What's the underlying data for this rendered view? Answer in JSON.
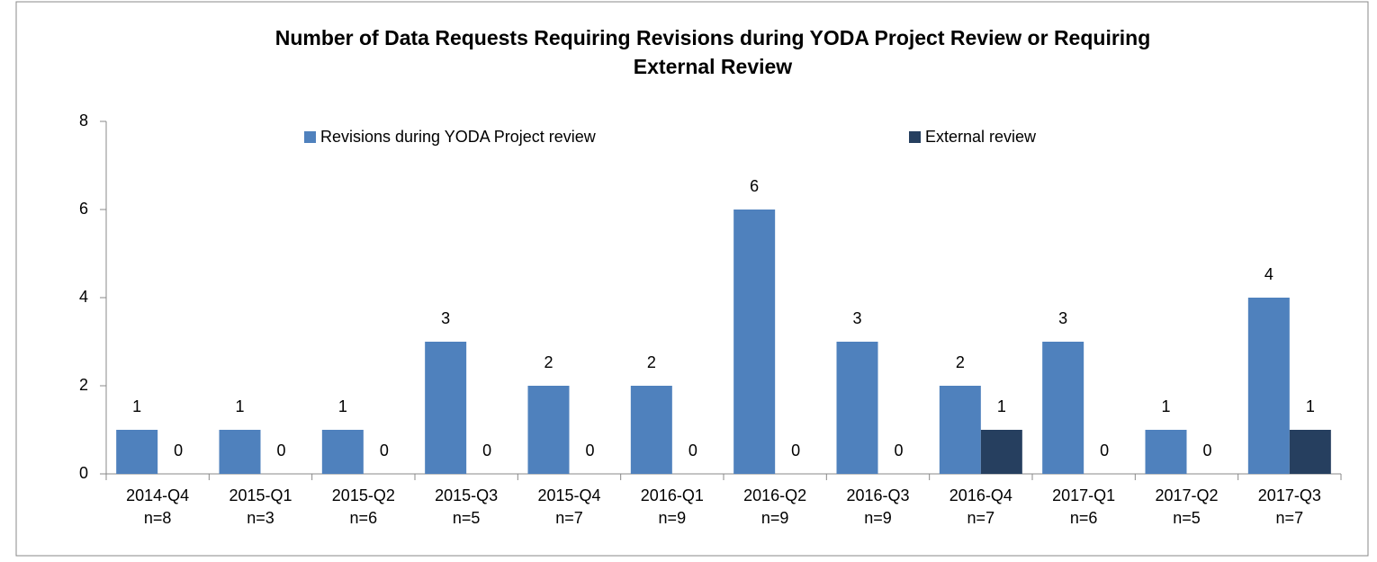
{
  "chart_data": {
    "type": "bar",
    "title_lines": [
      "Number of Data Requests Requiring Revisions during YODA Project Review or Requiring",
      "External Review"
    ],
    "categories": [
      "2014-Q4",
      "2015-Q1",
      "2015-Q2",
      "2015-Q3",
      "2015-Q4",
      "2016-Q1",
      "2016-Q2",
      "2016-Q3",
      "2016-Q4",
      "2017-Q1",
      "2017-Q2",
      "2017-Q3"
    ],
    "category_counts": [
      "n=8",
      "n=3",
      "n=6",
      "n=5",
      "n=7",
      "n=9",
      "n=9",
      "n=9",
      "n=7",
      "n=6",
      "n=5",
      "n=7"
    ],
    "series": [
      {
        "name": "Revisions during YODA Project review",
        "color": "#4f81bd",
        "values": [
          1,
          1,
          1,
          3,
          2,
          2,
          6,
          3,
          2,
          3,
          1,
          4
        ]
      },
      {
        "name": "External review",
        "color": "#263f5f",
        "values": [
          0,
          0,
          0,
          0,
          0,
          0,
          0,
          0,
          1,
          0,
          0,
          1
        ]
      }
    ],
    "ylim": [
      0,
      8
    ],
    "yticks": [
      0,
      2,
      4,
      6,
      8
    ],
    "legend": "top",
    "grid": false
  }
}
